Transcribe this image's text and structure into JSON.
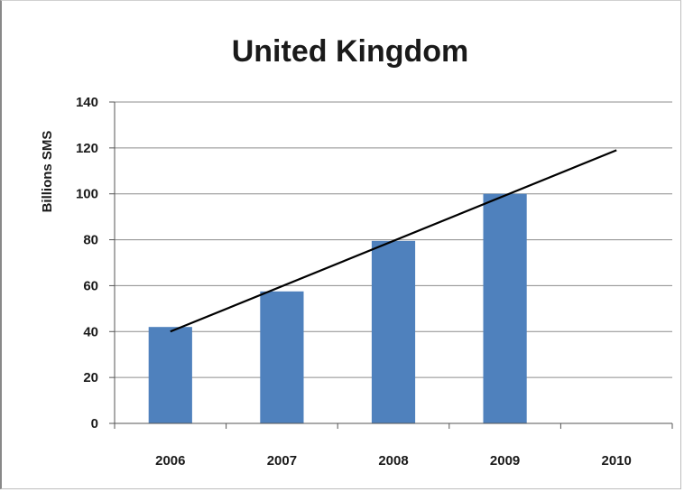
{
  "chart_data": {
    "type": "bar",
    "title": "United Kingdom",
    "xlabel": "",
    "ylabel": "Billions SMS",
    "categories": [
      "2006",
      "2007",
      "2008",
      "2009",
      "2010"
    ],
    "values": [
      42,
      57.5,
      79.5,
      100,
      null
    ],
    "ylim": [
      0,
      140
    ],
    "yticks": [
      0,
      20,
      40,
      60,
      80,
      100,
      120,
      140
    ],
    "grid": true,
    "legend": "none",
    "trendline": {
      "type": "linear",
      "start": [
        2006,
        40
      ],
      "end": [
        2010,
        119
      ]
    },
    "colors": {
      "bar": "#4f81bd",
      "trendline": "#000000",
      "grid": "#8c8c8c"
    }
  }
}
